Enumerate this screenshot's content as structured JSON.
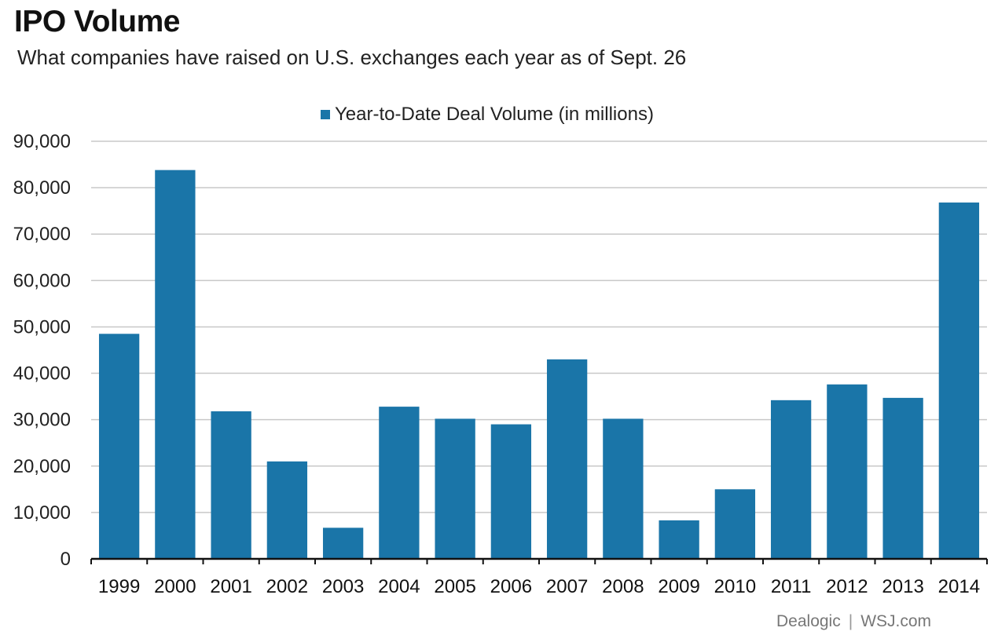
{
  "header": {
    "title": "IPO Volume",
    "subtitle": "What companies have raised on U.S. exchanges each year as of Sept. 26"
  },
  "legend": {
    "label": "Year-to-Date Deal Volume (in millions)"
  },
  "footer": {
    "source_1": "Dealogic",
    "separator": "|",
    "source_2": "WSJ.com"
  },
  "colors": {
    "bar": "#1a75a8",
    "grid": "#c8c8c8",
    "axis": "#111111"
  },
  "chart_data": {
    "type": "bar",
    "categories": [
      "1999",
      "2000",
      "2001",
      "2002",
      "2003",
      "2004",
      "2005",
      "2006",
      "2007",
      "2008",
      "2009",
      "2010",
      "2011",
      "2012",
      "2013",
      "2014"
    ],
    "series": [
      {
        "name": "Year-to-Date Deal Volume (in millions)",
        "values": [
          48500,
          83800,
          31800,
          21000,
          6700,
          32800,
          30200,
          29000,
          43000,
          30200,
          8300,
          15000,
          34200,
          37600,
          34700,
          76800
        ]
      }
    ],
    "yticks": [
      "0",
      "10,000",
      "20,000",
      "30,000",
      "40,000",
      "50,000",
      "60,000",
      "70,000",
      "80,000",
      "90,000"
    ],
    "ylim": [
      0,
      90000
    ],
    "grid": true,
    "legend_position": "top-center"
  }
}
